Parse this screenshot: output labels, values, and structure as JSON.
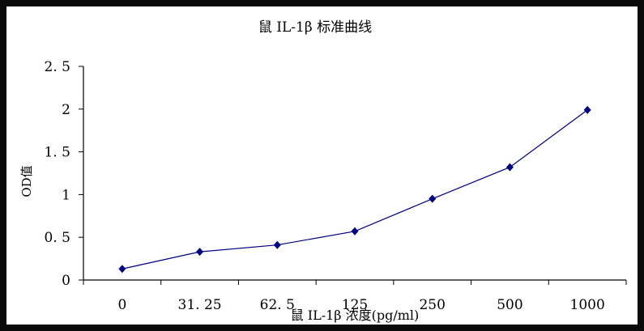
{
  "chart_data": {
    "type": "line",
    "title": "鼠 IL-1β 标准曲线",
    "xlabel": "鼠 IL-1β 浓度(pg/ml)",
    "ylabel": "OD值",
    "categories": [
      "0",
      "31.25",
      "62.5",
      "125",
      "250",
      "500",
      "1000"
    ],
    "series": [
      {
        "name": "OD值",
        "values": [
          0.13,
          0.33,
          0.41,
          0.57,
          0.95,
          1.32,
          1.99
        ],
        "color": "#000080",
        "marker": "diamond"
      }
    ],
    "yticks": [
      "0",
      "0.5",
      "1",
      "1.5",
      "2",
      "2.5"
    ],
    "ylim": [
      0,
      2.5
    ],
    "grid": false,
    "legend": "none"
  },
  "colors": {
    "frame": "#0a0a0a",
    "background": "#ffffff",
    "series": "#000080",
    "axis": "#000000"
  }
}
